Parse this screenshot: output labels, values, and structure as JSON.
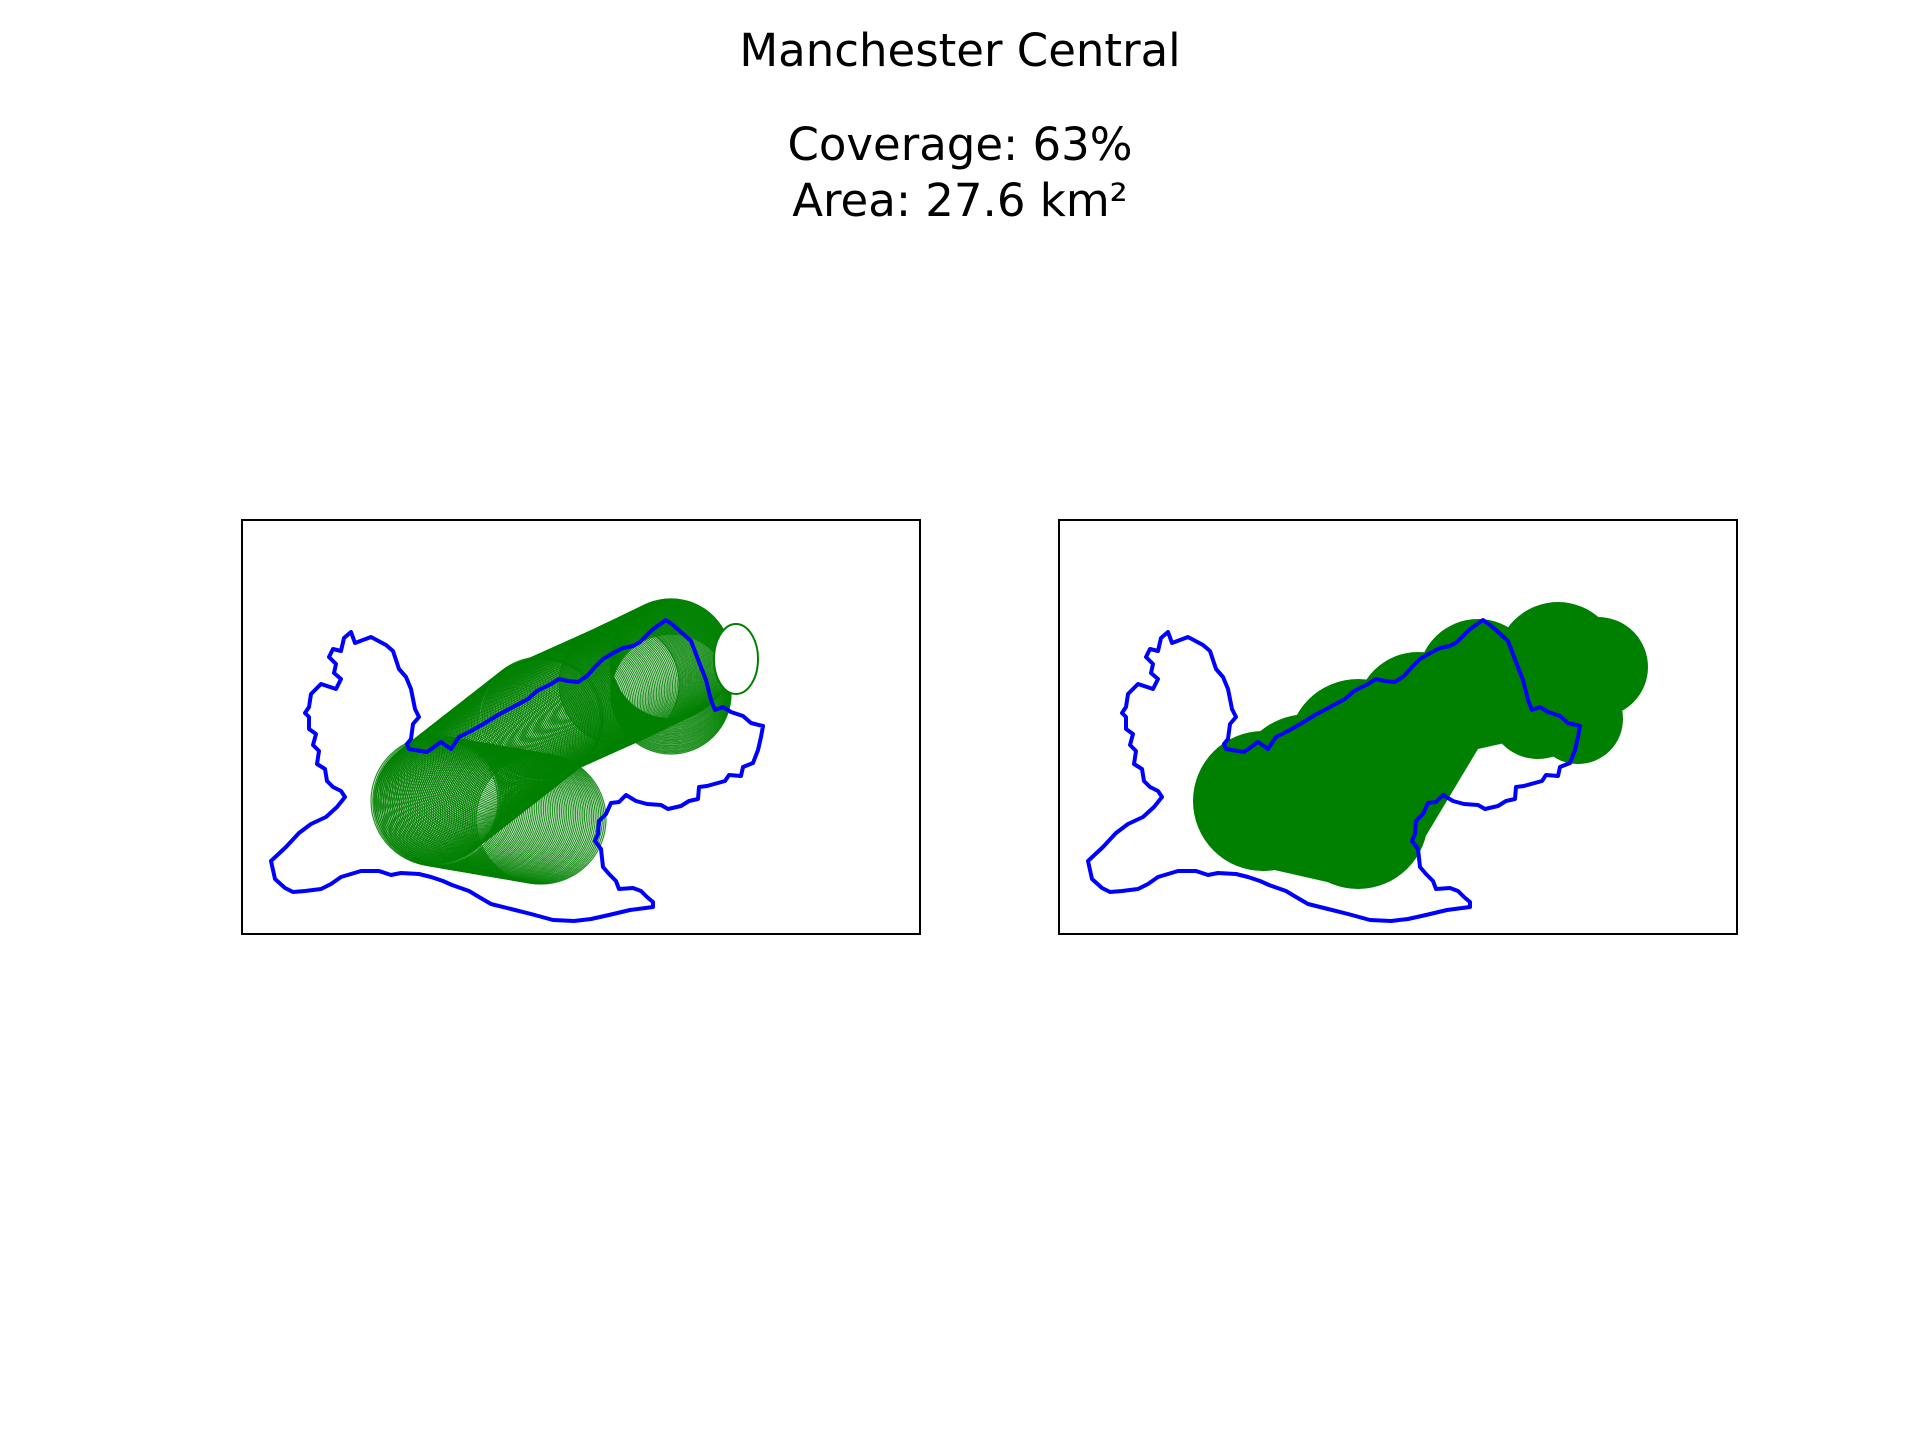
{
  "figure": {
    "title": "Manchester Central",
    "coverage_line": "Coverage: 63%",
    "area_line": "Area: 27.6 km²"
  },
  "colors": {
    "boundary": "#0000ff",
    "coverage_fill": "#008000",
    "frame": "#000000",
    "background": "#ffffff"
  },
  "panels": [
    {
      "id": "left",
      "style": "overlapping-circle-outlines"
    },
    {
      "id": "right",
      "style": "solid-filled-union"
    }
  ]
}
